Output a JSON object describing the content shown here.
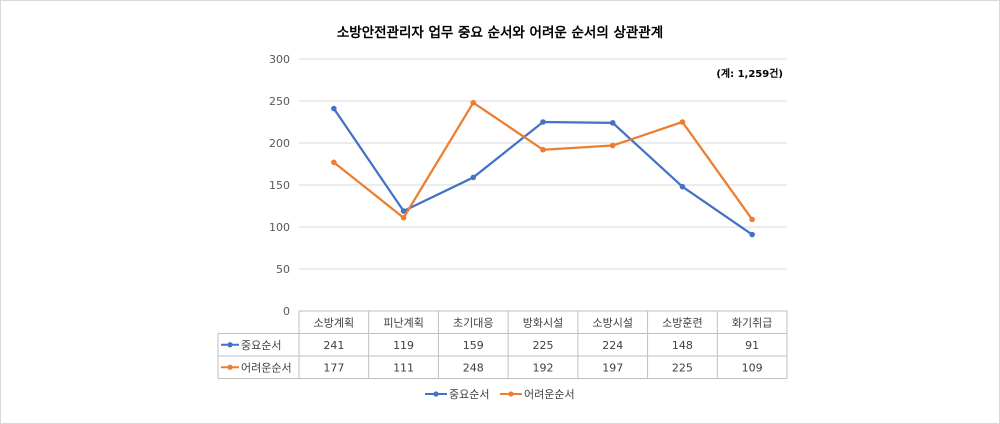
{
  "chart_data": {
    "type": "line",
    "title": "소방안전관리자 업무 중요 순서와 어려운 순서의 상관관계",
    "note": "(계: 1,259건)",
    "categories": [
      "소방계획",
      "피난계획",
      "초기대응",
      "방화시설",
      "소방시설",
      "소방훈련",
      "화기취급"
    ],
    "ylim": [
      0,
      300
    ],
    "yticks": [
      0,
      50,
      100,
      150,
      200,
      250,
      300
    ],
    "ytick_labels": [
      "0",
      "50",
      "100",
      "150",
      "200",
      "250",
      "300"
    ],
    "grid": true,
    "legend": "bottom",
    "data_table": true,
    "series": [
      {
        "name": "중요순서",
        "color": "#4472c4",
        "values": [
          241,
          119,
          159,
          225,
          224,
          148,
          91
        ]
      },
      {
        "name": "어려운순서",
        "color": "#ed7d31",
        "values": [
          177,
          111,
          248,
          192,
          197,
          225,
          109
        ]
      }
    ]
  }
}
